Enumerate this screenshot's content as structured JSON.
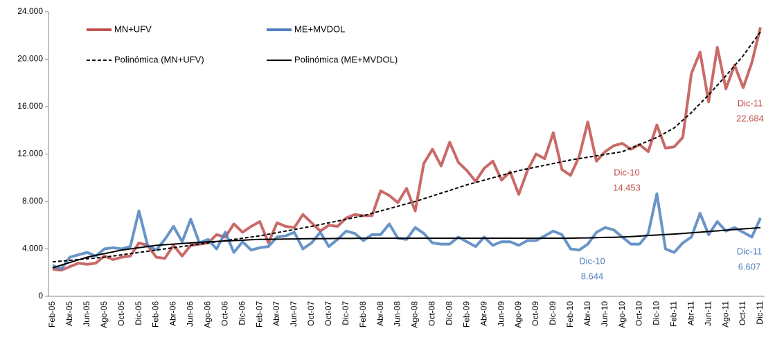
{
  "chart_data": {
    "type": "line",
    "categories": [
      "Feb-05",
      null,
      "Abr-05",
      null,
      "Jun-05",
      null,
      "Ago-05",
      null,
      "Oct-05",
      null,
      "Dic-05",
      null,
      "Feb-06",
      null,
      "Abr-06",
      null,
      "Jun-06",
      null,
      "Ago-06",
      null,
      "Oct-06",
      null,
      "Dic-06",
      null,
      "Feb-07",
      null,
      "Abr-07",
      null,
      "Jun-07",
      null,
      "Oct-07",
      null,
      "Oct-07",
      null,
      "Dic-07",
      null,
      "Feb-08",
      null,
      "Abr-08",
      null,
      "Jun-08",
      null,
      "Ago-08",
      null,
      "Oct-08",
      null,
      "Dic-08",
      null,
      "Feb-09",
      null,
      "Abr-09",
      null,
      "Jun-09",
      null,
      "Ago-09",
      null,
      "Oct-09",
      null,
      "Dic-09",
      null,
      "Feb-10",
      null,
      "Abr-10",
      null,
      "Jun-10",
      null,
      "Ago-10",
      null,
      "Oct-10",
      null,
      "Dic-10",
      null,
      "Feb-11",
      null,
      "Abr-11",
      null,
      "Jun-11",
      null,
      "Ago-11",
      null,
      "Oct-11",
      null,
      "Dic-11"
    ],
    "series": [
      {
        "name": "MN+UFV",
        "color": "#c0504d",
        "style": "solid",
        "values": [
          2300,
          2200,
          2500,
          2800,
          2700,
          2800,
          3400,
          3100,
          3300,
          3400,
          4500,
          4300,
          3300,
          3200,
          4300,
          3400,
          4300,
          4400,
          4500,
          5200,
          5000,
          6100,
          5400,
          5900,
          6300,
          4500,
          6200,
          5900,
          5800,
          6900,
          6200,
          5500,
          6000,
          5900,
          6600,
          6900,
          6800,
          6800,
          8900,
          8500,
          7900,
          9100,
          7200,
          11200,
          12400,
          11000,
          13000,
          11300,
          10600,
          9700,
          10800,
          11400,
          9800,
          10500,
          8600,
          10600,
          12000,
          11600,
          13800,
          10700,
          10200,
          11800,
          14700,
          11400,
          12200,
          12700,
          12900,
          12400,
          12800,
          12200,
          14453,
          12500,
          12600,
          13400,
          18800,
          20600,
          16400,
          21000,
          17500,
          19500,
          17600,
          19700,
          22684
        ]
      },
      {
        "name": "ME+MVDOL",
        "color": "#4f81bd",
        "style": "solid",
        "values": [
          2600,
          2300,
          3300,
          3500,
          3700,
          3400,
          4000,
          4100,
          4000,
          4200,
          7200,
          4300,
          3900,
          4800,
          5900,
          4600,
          6500,
          4500,
          4800,
          4000,
          5400,
          3700,
          4600,
          3900,
          4100,
          4200,
          5000,
          5100,
          5400,
          4000,
          4500,
          5400,
          4200,
          4800,
          5500,
          5300,
          4700,
          5200,
          5200,
          6100,
          4900,
          4800,
          5800,
          5300,
          4500,
          4400,
          4400,
          5000,
          4600,
          4200,
          5000,
          4300,
          4600,
          4600,
          4300,
          4700,
          4700,
          5100,
          5500,
          5200,
          4000,
          3900,
          4400,
          5400,
          5800,
          5600,
          5000,
          4400,
          4400,
          5300,
          8644,
          4000,
          3700,
          4500,
          5000,
          7000,
          5200,
          6300,
          5500,
          5800,
          5400,
          5000,
          6607
        ]
      },
      {
        "name": "Polinómica (MN+UFV)",
        "color": "#000000",
        "style": "dashed",
        "values": [
          2900,
          2970,
          3030,
          3100,
          3170,
          3230,
          3300,
          3400,
          3500,
          3600,
          3700,
          3800,
          3900,
          4000,
          4100,
          4200,
          4300,
          4400,
          4500,
          4600,
          4700,
          4800,
          4900,
          5000,
          5100,
          5230,
          5370,
          5500,
          5630,
          5770,
          5900,
          6050,
          6200,
          6350,
          6500,
          6650,
          6800,
          7000,
          7200,
          7400,
          7600,
          7800,
          8000,
          8230,
          8470,
          8700,
          8930,
          9170,
          9400,
          9600,
          9800,
          10000,
          10200,
          10400,
          10600,
          10750,
          10900,
          11050,
          11200,
          11350,
          11500,
          11620,
          11730,
          11850,
          11970,
          12080,
          12200,
          12500,
          12800,
          13100,
          13400,
          13800,
          14200,
          14850,
          15500,
          16250,
          17000,
          17800,
          18600,
          19450,
          20300,
          21300,
          22300
        ]
      },
      {
        "name": "Polinómica (ME+MVDOL)",
        "color": "#000000",
        "style": "solid",
        "values": [
          2400,
          2630,
          2850,
          3080,
          3300,
          3450,
          3600,
          3750,
          3900,
          4000,
          4100,
          4200,
          4300,
          4350,
          4400,
          4450,
          4500,
          4550,
          4600,
          4630,
          4670,
          4700,
          4730,
          4770,
          4800,
          4810,
          4820,
          4830,
          4840,
          4850,
          4860,
          4860,
          4870,
          4880,
          4880,
          4890,
          4900,
          4900,
          4900,
          4900,
          4900,
          4900,
          4900,
          4900,
          4900,
          4900,
          4900,
          4900,
          4900,
          4900,
          4900,
          4900,
          4900,
          4900,
          4900,
          4900,
          4900,
          4900,
          4900,
          4900,
          4900,
          4920,
          4930,
          4950,
          4970,
          4980,
          5000,
          5040,
          5080,
          5130,
          5170,
          5210,
          5250,
          5300,
          5360,
          5410,
          5470,
          5520,
          5580,
          5630,
          5690,
          5740,
          5800
        ]
      }
    ],
    "ylim": [
      0,
      24000
    ],
    "yticks": [
      0,
      {
        "value": 4000,
        "label": "4.000"
      },
      {
        "value": 8000,
        "label": "8.000"
      },
      {
        "value": 12000,
        "label": "12.000"
      },
      {
        "value": 16000,
        "label": "16.000"
      },
      {
        "value": 20000,
        "label": "20.000"
      },
      {
        "value": 24000,
        "label": "24.000"
      }
    ],
    "annotations": [
      {
        "text": "Dic-10",
        "value": "14.453",
        "color": "#c0504d"
      },
      {
        "text": "Dic-11",
        "value": "22.684",
        "color": "#c0504d"
      },
      {
        "text": "Dic-10",
        "value": "8.644",
        "color": "#4f81bd"
      },
      {
        "text": "Dic-11",
        "value": "6.607",
        "color": "#4f81bd"
      }
    ]
  }
}
